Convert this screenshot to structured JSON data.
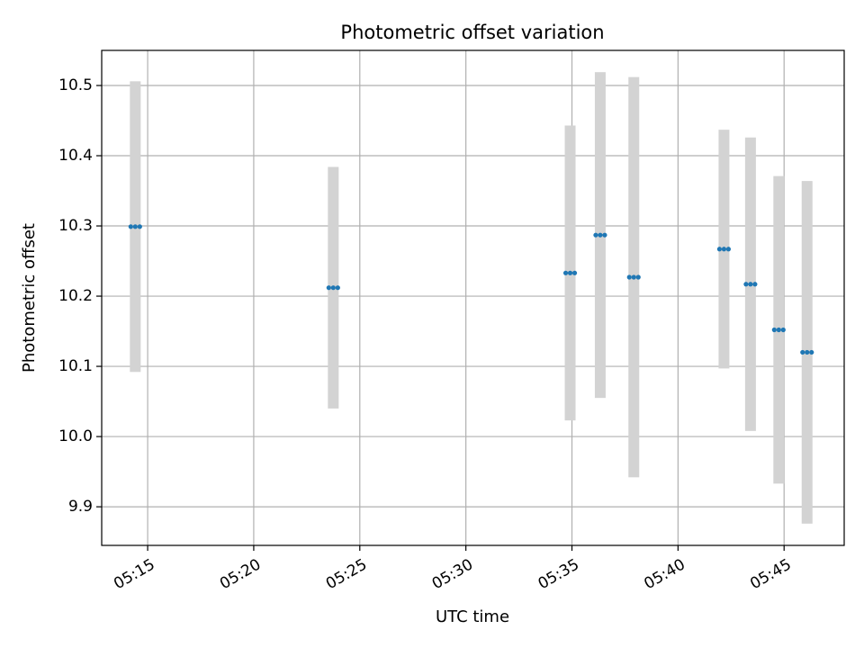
{
  "chart_data": {
    "type": "scatter",
    "title": "Photometric offset variation",
    "xlabel": "UTC time",
    "ylabel": "Photometric offset",
    "x_ticks": [
      "05:15",
      "05:20",
      "05:25",
      "05:30",
      "05:35",
      "05:40",
      "05:45"
    ],
    "y_ticks": [
      "9.9",
      "10.0",
      "10.1",
      "10.2",
      "10.3",
      "10.4",
      "10.5"
    ],
    "xlim": [
      "05:12:50",
      "05:47:50"
    ],
    "ylim": [
      9.845,
      10.55
    ],
    "grid": true,
    "colors": {
      "point": "#1f77b4",
      "errorbar": "#d3d3d3",
      "grid": "#b0b0b0"
    },
    "points": [
      {
        "x": "05:14:25",
        "y": 10.299,
        "yerr": 0.207
      },
      {
        "x": "05:23:45",
        "y": 10.212,
        "yerr": 0.172
      },
      {
        "x": "05:34:55",
        "y": 10.233,
        "yerr": 0.21
      },
      {
        "x": "05:36:20",
        "y": 10.287,
        "yerr": 0.232
      },
      {
        "x": "05:37:55",
        "y": 10.227,
        "yerr": 0.285
      },
      {
        "x": "05:42:10",
        "y": 10.267,
        "yerr": 0.17
      },
      {
        "x": "05:43:25",
        "y": 10.217,
        "yerr": 0.209
      },
      {
        "x": "05:44:45",
        "y": 10.152,
        "yerr": 0.219
      },
      {
        "x": "05:46:05",
        "y": 10.12,
        "yerr": 0.244
      }
    ]
  }
}
